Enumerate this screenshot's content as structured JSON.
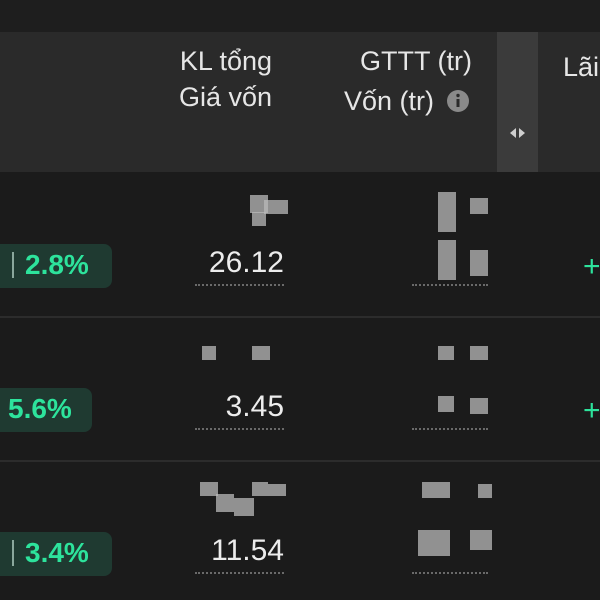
{
  "header": {
    "col1_line1": "KL tổng",
    "col1_line2": "Giá vốn",
    "col2_line1": "GTTT (tr)",
    "col2_line2": "Vốn (tr)",
    "col3": "Lãi"
  },
  "rows": [
    {
      "change": "2.8%",
      "price": "26.12",
      "sign": "+"
    },
    {
      "change": "5.6%",
      "price": "3.45",
      "sign": "+"
    },
    {
      "change": "3.4%",
      "price": "11.54"
    }
  ]
}
